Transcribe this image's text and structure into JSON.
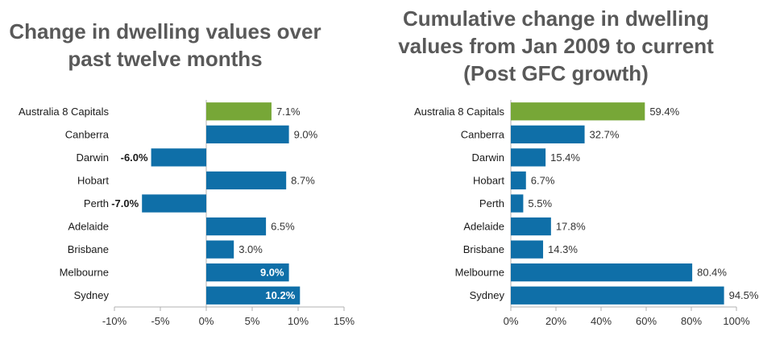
{
  "chart_data": [
    {
      "type": "bar",
      "orientation": "horizontal",
      "title": "Change in dwelling values over past twelve months",
      "categories": [
        "Australia  8 Capitals",
        "Canberra",
        "Darwin",
        "Hobart",
        "Perth",
        "Adelaide",
        "Brisbane",
        "Melbourne",
        "Sydney"
      ],
      "values": [
        7.1,
        9.0,
        -6.0,
        8.7,
        -7.0,
        6.5,
        3.0,
        9.0,
        10.2
      ],
      "value_labels": [
        "7.1%",
        "9.0%",
        "-6.0%",
        "8.7%",
        "-7.0%",
        "6.5%",
        "3.0%",
        "9.0%",
        "10.2%"
      ],
      "xlim": [
        -10,
        15
      ],
      "xticks": [
        -10,
        -5,
        0,
        5,
        10,
        15
      ],
      "xtick_labels": [
        "-10%",
        "-5%",
        "0%",
        "5%",
        "10%",
        "15%"
      ],
      "colors": {
        "highlight": "#77A737",
        "bar": "#0F6FA8",
        "axis": "#B0B0B0"
      },
      "highlight_index": 0,
      "label_inside_indices": [
        7,
        8
      ],
      "grid": false,
      "legend": "none"
    },
    {
      "type": "bar",
      "orientation": "horizontal",
      "title": "Cumulative change in dwelling values from Jan 2009 to current (Post GFC growth)",
      "categories": [
        "Australia  8 Capitals",
        "Canberra",
        "Darwin",
        "Hobart",
        "Perth",
        "Adelaide",
        "Brisbane",
        "Melbourne",
        "Sydney"
      ],
      "values": [
        59.4,
        32.7,
        15.4,
        6.7,
        5.5,
        17.8,
        14.3,
        80.4,
        94.5
      ],
      "value_labels": [
        "59.4%",
        "32.7%",
        "15.4%",
        "6.7%",
        "5.5%",
        "17.8%",
        "14.3%",
        "80.4%",
        "94.5%"
      ],
      "xlim": [
        0,
        100
      ],
      "xticks": [
        0,
        20,
        40,
        60,
        80,
        100
      ],
      "xtick_labels": [
        "0%",
        "20%",
        "40%",
        "60%",
        "80%",
        "100%"
      ],
      "colors": {
        "highlight": "#77A737",
        "bar": "#0F6FA8",
        "axis": "#B0B0B0"
      },
      "highlight_index": 0,
      "label_inside_indices": [],
      "grid": false,
      "legend": "none"
    }
  ]
}
